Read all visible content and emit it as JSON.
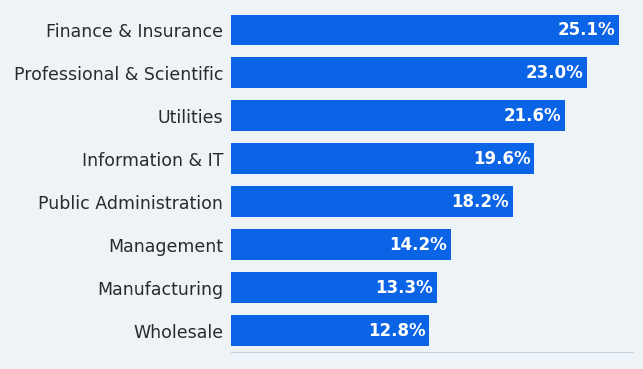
{
  "chart_data": {
    "type": "bar",
    "orientation": "horizontal",
    "categories": [
      "Finance & Insurance",
      "Professional & Scientific",
      "Utilities",
      "Information & IT",
      "Public Administration",
      "Management",
      "Manufacturing",
      "Wholesale"
    ],
    "values": [
      25.1,
      23.0,
      21.6,
      19.6,
      18.2,
      14.2,
      13.3,
      12.8
    ],
    "value_labels": [
      "25.1%",
      "23.0%",
      "21.6%",
      "19.6%",
      "18.2%",
      "14.2%",
      "13.3%",
      "12.8%"
    ],
    "color": "#0b63e5",
    "xlim": [
      0,
      26
    ],
    "grid": false,
    "data_labels": true,
    "tick_labels": "y"
  }
}
